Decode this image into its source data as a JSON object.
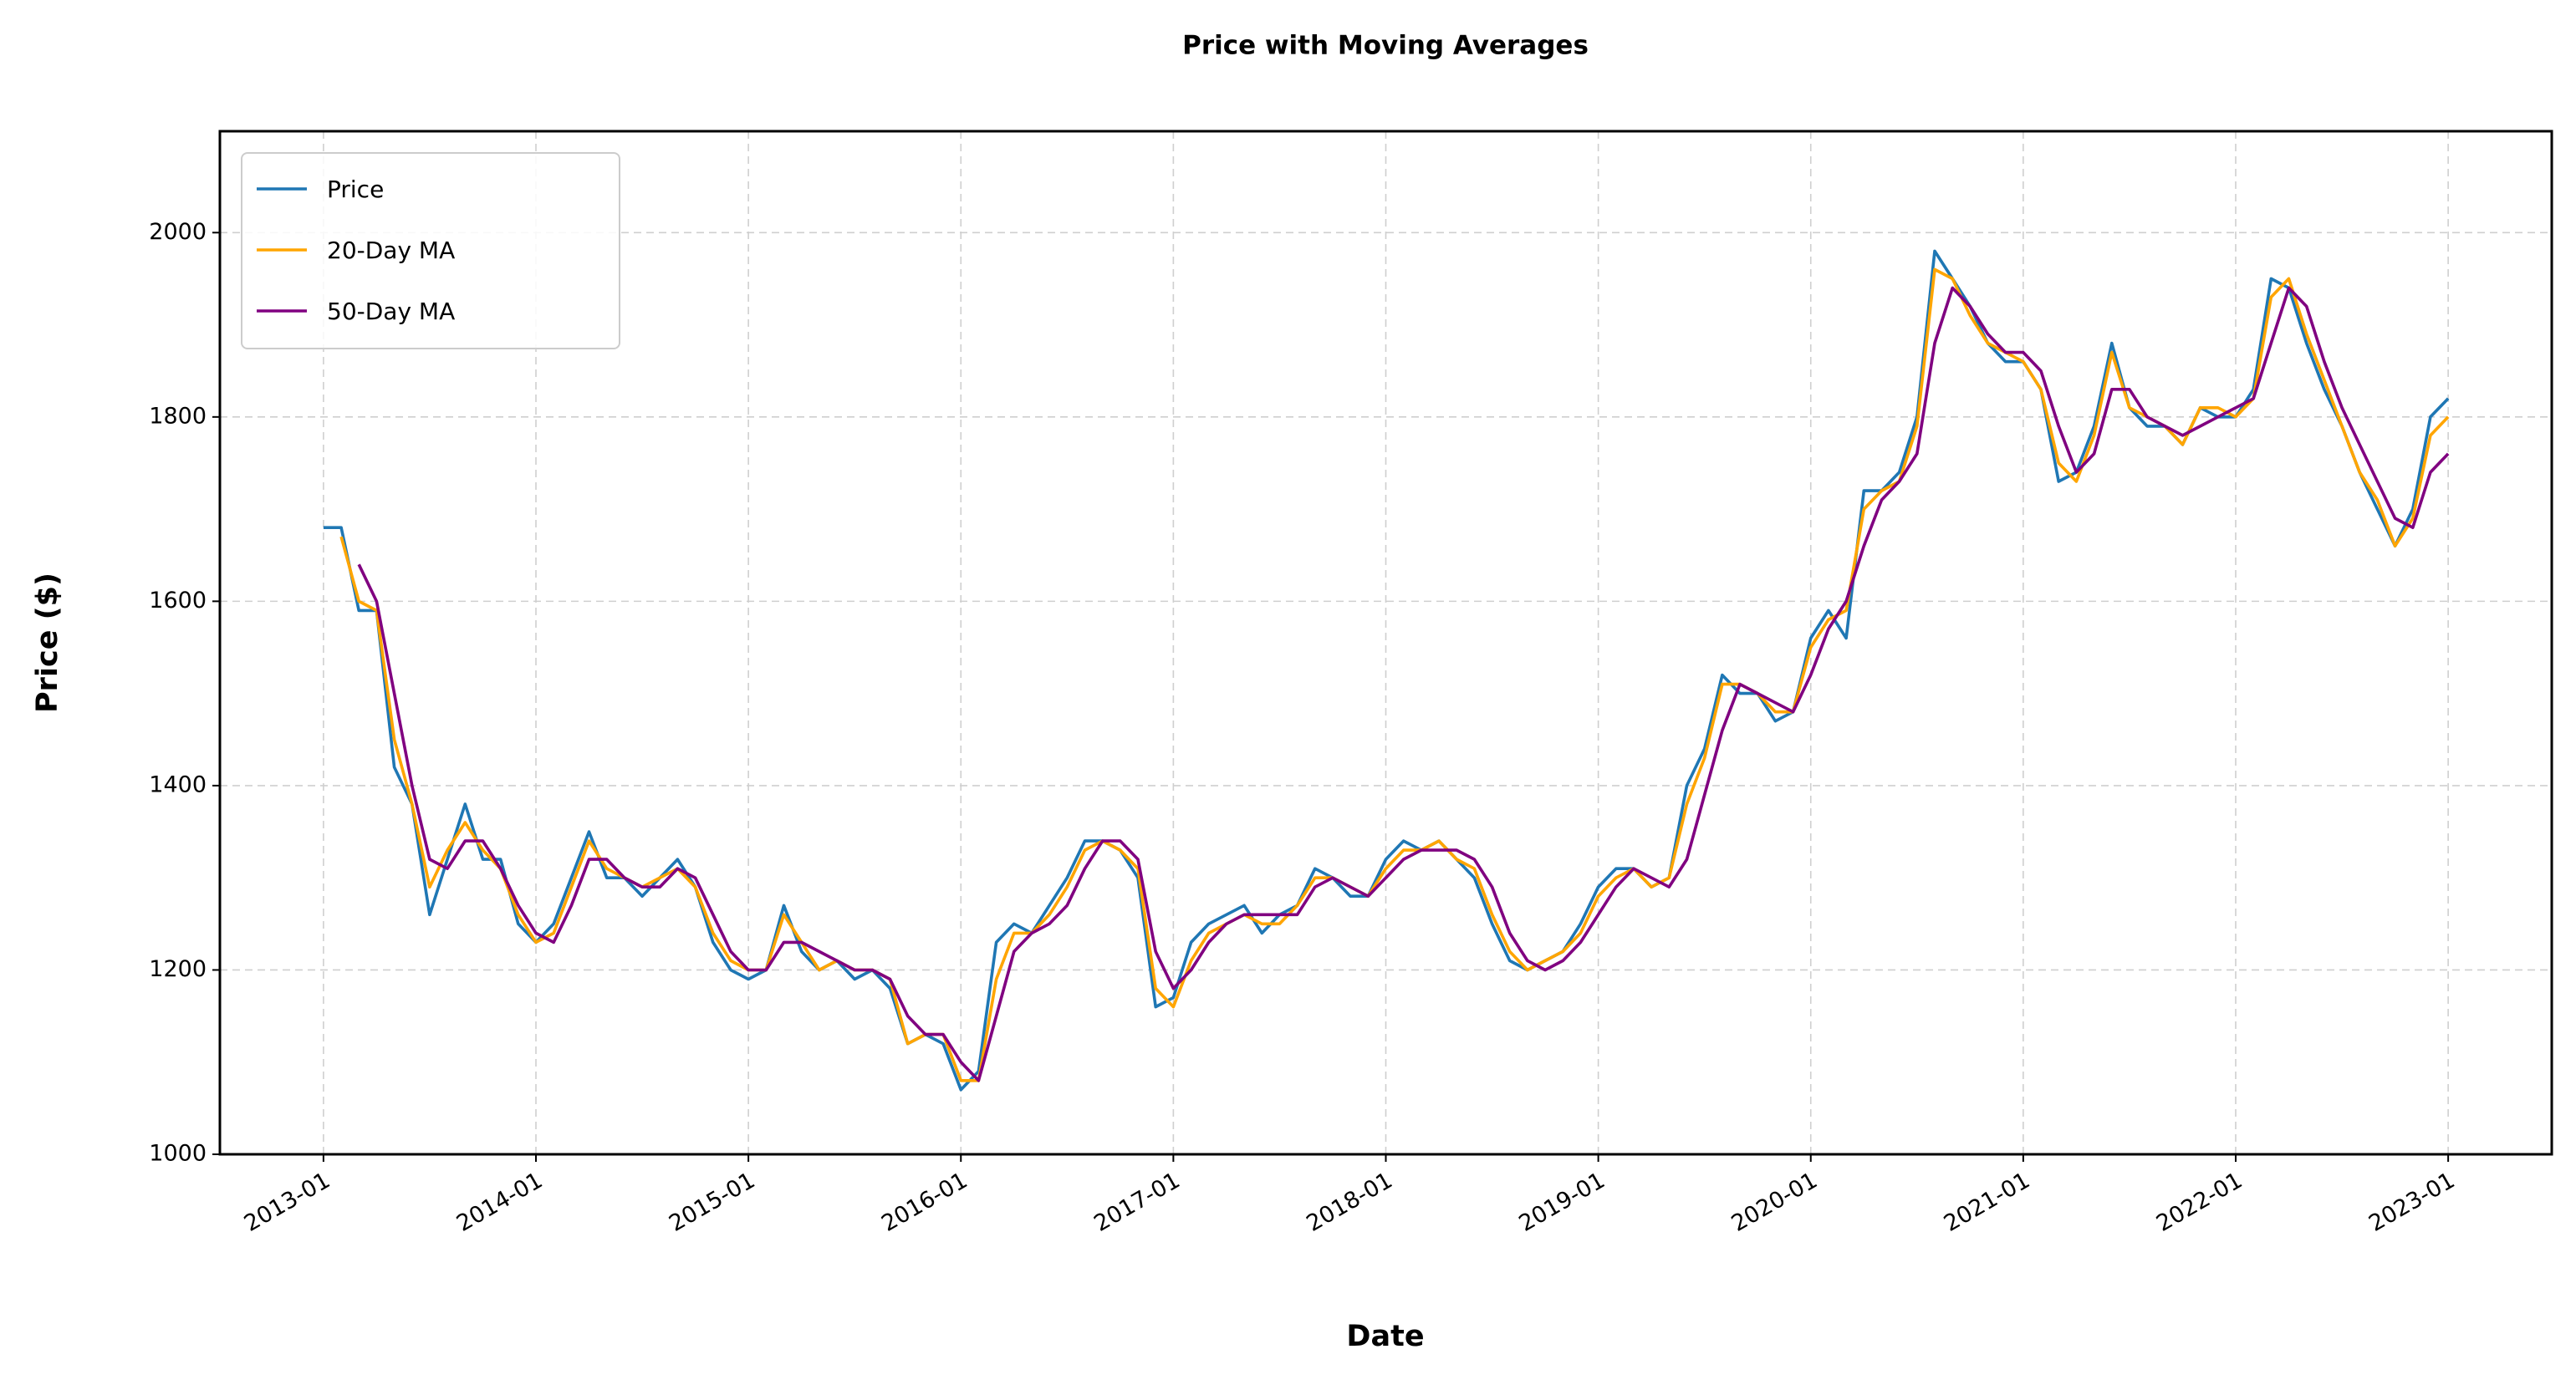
{
  "chart_data": {
    "type": "line",
    "title": "Price with Moving Averages",
    "xlabel": "Date",
    "ylabel": "Price ($)",
    "x": [
      "2013-01",
      "2013-02",
      "2013-03",
      "2013-04",
      "2013-05",
      "2013-06",
      "2013-07",
      "2013-08",
      "2013-09",
      "2013-10",
      "2013-11",
      "2013-12",
      "2014-01",
      "2014-02",
      "2014-03",
      "2014-04",
      "2014-05",
      "2014-06",
      "2014-07",
      "2014-08",
      "2014-09",
      "2014-10",
      "2014-11",
      "2014-12",
      "2015-01",
      "2015-02",
      "2015-03",
      "2015-04",
      "2015-05",
      "2015-06",
      "2015-07",
      "2015-08",
      "2015-09",
      "2015-10",
      "2015-11",
      "2015-12",
      "2016-01",
      "2016-02",
      "2016-03",
      "2016-04",
      "2016-05",
      "2016-06",
      "2016-07",
      "2016-08",
      "2016-09",
      "2016-10",
      "2016-11",
      "2016-12",
      "2017-01",
      "2017-02",
      "2017-03",
      "2017-04",
      "2017-05",
      "2017-06",
      "2017-07",
      "2017-08",
      "2017-09",
      "2017-10",
      "2017-11",
      "2017-12",
      "2018-01",
      "2018-02",
      "2018-03",
      "2018-04",
      "2018-05",
      "2018-06",
      "2018-07",
      "2018-08",
      "2018-09",
      "2018-10",
      "2018-11",
      "2018-12",
      "2019-01",
      "2019-02",
      "2019-03",
      "2019-04",
      "2019-05",
      "2019-06",
      "2019-07",
      "2019-08",
      "2019-09",
      "2019-10",
      "2019-11",
      "2019-12",
      "2020-01",
      "2020-02",
      "2020-03",
      "2020-04",
      "2020-05",
      "2020-06",
      "2020-07",
      "2020-08",
      "2020-09",
      "2020-10",
      "2020-11",
      "2020-12",
      "2021-01",
      "2021-02",
      "2021-03",
      "2021-04",
      "2021-05",
      "2021-06",
      "2021-07",
      "2021-08",
      "2021-09",
      "2021-10",
      "2021-11",
      "2021-12",
      "2022-01",
      "2022-02",
      "2022-03",
      "2022-04",
      "2022-05",
      "2022-06",
      "2022-07",
      "2022-08",
      "2022-09",
      "2022-10",
      "2022-11",
      "2022-12",
      "2023-01"
    ],
    "series": [
      {
        "name": "Price",
        "color": "#1f77b4",
        "values": [
          1680,
          1680,
          1590,
          1590,
          1420,
          1380,
          1260,
          1320,
          1380,
          1320,
          1320,
          1250,
          1230,
          1250,
          1300,
          1350,
          1300,
          1300,
          1280,
          1300,
          1320,
          1290,
          1230,
          1200,
          1190,
          1200,
          1270,
          1220,
          1200,
          1210,
          1190,
          1200,
          1180,
          1120,
          1130,
          1120,
          1070,
          1090,
          1230,
          1250,
          1240,
          1270,
          1300,
          1340,
          1340,
          1330,
          1300,
          1160,
          1170,
          1230,
          1250,
          1260,
          1270,
          1240,
          1260,
          1270,
          1310,
          1300,
          1280,
          1280,
          1320,
          1340,
          1330,
          1340,
          1320,
          1300,
          1250,
          1210,
          1200,
          1210,
          1220,
          1250,
          1290,
          1310,
          1310,
          1290,
          1300,
          1400,
          1440,
          1520,
          1500,
          1500,
          1470,
          1480,
          1560,
          1590,
          1560,
          1720,
          1720,
          1740,
          1800,
          1980,
          1950,
          1920,
          1880,
          1860,
          1860,
          1830,
          1730,
          1740,
          1790,
          1880,
          1810,
          1790,
          1790,
          1770,
          1810,
          1800,
          1800,
          1830,
          1950,
          1940,
          1880,
          1830,
          1790,
          1740,
          1700,
          1660,
          1700,
          1800,
          1820
        ]
      },
      {
        "name": "20-Day MA",
        "color": "#ffa500",
        "values": [
          null,
          1670,
          1600,
          1590,
          1450,
          1380,
          1290,
          1330,
          1360,
          1330,
          1310,
          1260,
          1230,
          1240,
          1290,
          1340,
          1310,
          1300,
          1290,
          1300,
          1310,
          1290,
          1240,
          1210,
          1200,
          1200,
          1260,
          1230,
          1200,
          1210,
          1200,
          1200,
          1190,
          1120,
          1130,
          1130,
          1080,
          1080,
          1190,
          1240,
          1240,
          1260,
          1290,
          1330,
          1340,
          1330,
          1310,
          1180,
          1160,
          1210,
          1240,
          1250,
          1260,
          1250,
          1250,
          1270,
          1300,
          1300,
          1290,
          1280,
          1310,
          1330,
          1330,
          1340,
          1320,
          1310,
          1260,
          1220,
          1200,
          1210,
          1220,
          1240,
          1280,
          1300,
          1310,
          1290,
          1300,
          1380,
          1430,
          1510,
          1510,
          1500,
          1480,
          1480,
          1550,
          1580,
          1590,
          1700,
          1720,
          1730,
          1790,
          1960,
          1950,
          1910,
          1880,
          1870,
          1860,
          1830,
          1750,
          1730,
          1780,
          1870,
          1810,
          1800,
          1790,
          1770,
          1810,
          1810,
          1800,
          1820,
          1930,
          1950,
          1890,
          1840,
          1790,
          1740,
          1710,
          1660,
          1690,
          1780,
          1800
        ]
      },
      {
        "name": "50-Day MA",
        "color": "#800080",
        "values": [
          null,
          null,
          1640,
          1600,
          1500,
          1400,
          1320,
          1310,
          1340,
          1340,
          1310,
          1270,
          1240,
          1230,
          1270,
          1320,
          1320,
          1300,
          1290,
          1290,
          1310,
          1300,
          1260,
          1220,
          1200,
          1200,
          1230,
          1230,
          1220,
          1210,
          1200,
          1200,
          1190,
          1150,
          1130,
          1130,
          1100,
          1080,
          1150,
          1220,
          1240,
          1250,
          1270,
          1310,
          1340,
          1340,
          1320,
          1220,
          1180,
          1200,
          1230,
          1250,
          1260,
          1260,
          1260,
          1260,
          1290,
          1300,
          1290,
          1280,
          1300,
          1320,
          1330,
          1330,
          1330,
          1320,
          1290,
          1240,
          1210,
          1200,
          1210,
          1230,
          1260,
          1290,
          1310,
          1300,
          1290,
          1320,
          1390,
          1460,
          1510,
          1500,
          1490,
          1480,
          1520,
          1570,
          1600,
          1660,
          1710,
          1730,
          1760,
          1880,
          1940,
          1920,
          1890,
          1870,
          1870,
          1850,
          1790,
          1740,
          1760,
          1830,
          1830,
          1800,
          1790,
          1780,
          1790,
          1800,
          1810,
          1820,
          1880,
          1940,
          1920,
          1860,
          1810,
          1770,
          1730,
          1690,
          1680,
          1740,
          1760
        ]
      }
    ],
    "xticks": [
      "2013-01",
      "2014-01",
      "2015-01",
      "2016-01",
      "2017-01",
      "2018-01",
      "2019-01",
      "2020-01",
      "2021-01",
      "2022-01",
      "2023-01"
    ],
    "ylim": [
      1000,
      2110
    ],
    "yticks": [
      1000,
      1200,
      1400,
      1600,
      1800,
      2000
    ],
    "grid": true,
    "legend": "upper left"
  }
}
